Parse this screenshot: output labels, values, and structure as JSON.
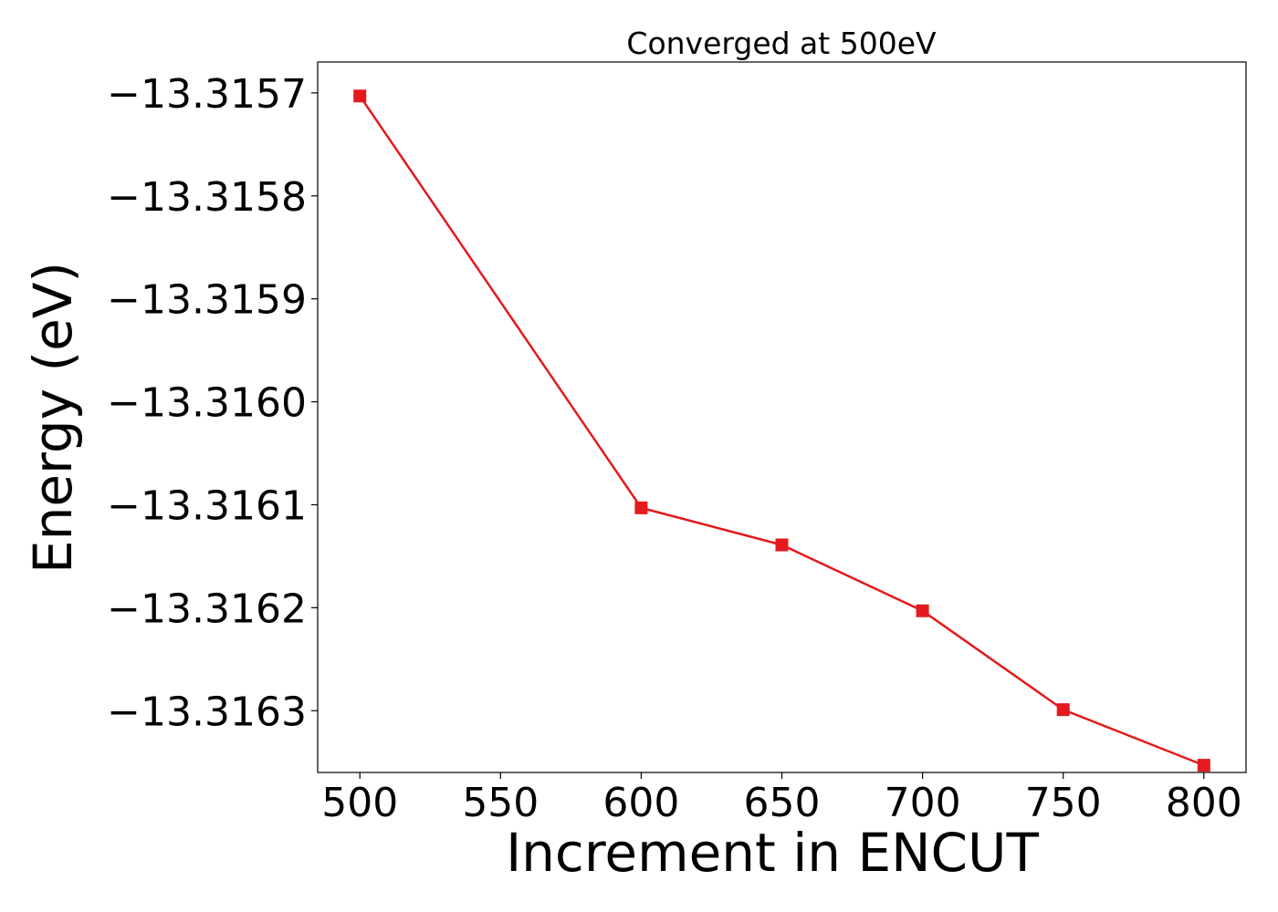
{
  "chart_data": {
    "type": "line",
    "title": "Converged at 500eV",
    "xlabel": "Increment in ENCUT",
    "ylabel": "Energy (eV)",
    "xlim": [
      485,
      815
    ],
    "ylim": [
      -13.31636,
      -13.31567
    ],
    "x_ticks": [
      500,
      550,
      600,
      650,
      700,
      750,
      800
    ],
    "y_ticks": [
      -13.3157,
      -13.3158,
      -13.3159,
      -13.316,
      -13.3161,
      -13.3162,
      -13.3163
    ],
    "y_tick_labels": [
      "−13.3157",
      "−13.3158",
      "−13.3159",
      "−13.3160",
      "−13.3161",
      "−13.3162",
      "−13.3163"
    ],
    "grid": false,
    "series": [
      {
        "color": "#e41a1c",
        "marker": "square",
        "x": [
          500,
          600,
          650,
          700,
          750,
          800
        ],
        "y": [
          -13.315703,
          -13.316103,
          -13.316139,
          -13.316203,
          -13.316299,
          -13.316353
        ]
      }
    ]
  }
}
